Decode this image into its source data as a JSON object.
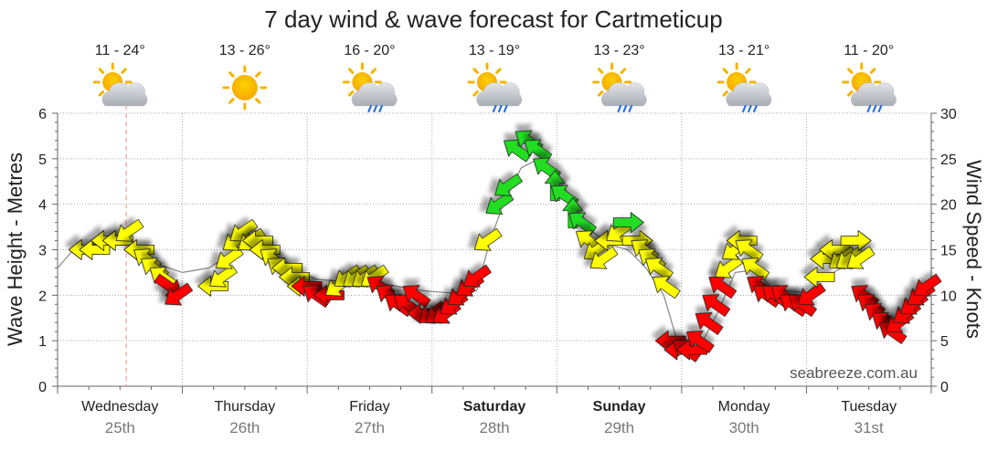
{
  "chart_data": {
    "type": "line",
    "title": "7 day wind & wave forecast for Cartmeticup",
    "y_left_label": "Wave Height - Metres",
    "y_right_label": "Wind Speed - Knots",
    "y_left_range": [
      0,
      6
    ],
    "y_left_ticks": [
      "0",
      "1",
      "2",
      "3",
      "4",
      "5",
      "6"
    ],
    "y_right_range": [
      0,
      30
    ],
    "y_right_ticks": [
      "0",
      "5",
      "10",
      "15",
      "20",
      "25",
      "30"
    ],
    "grid": true,
    "watermark": "seabreeze.com.au",
    "days": [
      {
        "name": "Wednesday",
        "date": "25th",
        "bold": false,
        "temp": "11 - 24°",
        "weather": "partly-cloudy"
      },
      {
        "name": "Thursday",
        "date": "26th",
        "bold": false,
        "temp": "13 - 26°",
        "weather": "sunny"
      },
      {
        "name": "Friday",
        "date": "27th",
        "bold": false,
        "temp": "16 - 20°",
        "weather": "showers"
      },
      {
        "name": "Saturday",
        "date": "28th",
        "bold": true,
        "temp": "13 - 19°",
        "weather": "showers"
      },
      {
        "name": "Sunday",
        "date": "29th",
        "bold": true,
        "temp": "13 - 23°",
        "weather": "showers"
      },
      {
        "name": "Monday",
        "date": "30th",
        "bold": false,
        "temp": "13 - 21°",
        "weather": "showers"
      },
      {
        "name": "Tuesday",
        "date": "31st",
        "bold": false,
        "temp": "11 - 20°",
        "weather": "showers"
      }
    ],
    "current_time_day": 0.55,
    "colors": {
      "light": "#ffff00",
      "moderate": "#ff0000",
      "strong": "#22dd22",
      "wave_line": "#888888",
      "now_line": "#ff8888"
    },
    "series": [
      {
        "name": "Wind Speed",
        "units": "knots",
        "points": [
          [
            0.3,
            15,
            "w",
            "light"
          ],
          [
            0.42,
            15,
            "w",
            "light"
          ],
          [
            0.55,
            16,
            "w",
            "light"
          ],
          [
            0.68,
            16,
            "w",
            "light"
          ],
          [
            0.8,
            17,
            "sw",
            "light"
          ],
          [
            0.92,
            15,
            "w",
            "light"
          ],
          [
            1.0,
            14,
            "nw",
            "light"
          ],
          [
            1.08,
            13,
            "nw",
            "light"
          ],
          [
            1.18,
            12,
            "nw",
            "light"
          ],
          [
            1.25,
            11,
            "se",
            "moderate"
          ],
          [
            1.35,
            10,
            "sw",
            "moderate"
          ],
          [
            1.75,
            11,
            "w",
            "light"
          ],
          [
            1.85,
            12,
            "sw",
            "light"
          ],
          [
            1.92,
            14,
            "sw",
            "light"
          ],
          [
            2.0,
            16,
            "sw",
            "light"
          ],
          [
            2.08,
            17,
            "sw",
            "light"
          ],
          [
            2.17,
            16,
            "sw",
            "light"
          ],
          [
            2.25,
            16,
            "w",
            "light"
          ],
          [
            2.33,
            15,
            "w",
            "light"
          ],
          [
            2.42,
            14,
            "nw",
            "light"
          ],
          [
            2.5,
            13,
            "nw",
            "light"
          ],
          [
            2.58,
            13,
            "w",
            "light"
          ],
          [
            2.66,
            12,
            "w",
            "light"
          ],
          [
            2.75,
            11,
            "w",
            "light"
          ],
          [
            2.8,
            11,
            "w",
            "moderate"
          ],
          [
            2.9,
            10,
            "nw",
            "moderate"
          ],
          [
            3.05,
            10,
            "w",
            "moderate"
          ],
          [
            3.15,
            11,
            "sw",
            "light"
          ],
          [
            3.25,
            12,
            "sw",
            "light"
          ],
          [
            3.35,
            12,
            "sw",
            "light"
          ],
          [
            3.45,
            12,
            "sw",
            "light"
          ],
          [
            3.55,
            12,
            "sw",
            "light"
          ],
          [
            3.62,
            11,
            "nw",
            "moderate"
          ],
          [
            3.72,
            10,
            "nw",
            "moderate"
          ],
          [
            3.82,
            9,
            "nw",
            "moderate"
          ],
          [
            3.92,
            9,
            "nw",
            "moderate"
          ],
          [
            4.02,
            10,
            "nw",
            "moderate"
          ],
          [
            4.1,
            8,
            "w",
            "moderate"
          ],
          [
            4.2,
            8,
            "sw",
            "moderate"
          ],
          [
            4.28,
            8,
            "sw",
            "moderate"
          ],
          [
            4.36,
            8,
            "sw",
            "moderate"
          ],
          [
            4.44,
            9,
            "sw",
            "moderate"
          ],
          [
            4.52,
            10,
            "sw",
            "moderate"
          ],
          [
            4.62,
            11,
            "sw",
            "moderate"
          ],
          [
            4.7,
            12,
            "sw",
            "moderate"
          ],
          [
            4.82,
            16,
            "sw",
            "light"
          ],
          [
            4.95,
            20,
            "sw",
            "strong"
          ],
          [
            5.05,
            22,
            "sw",
            "strong"
          ],
          [
            5.15,
            26,
            "nw",
            "strong"
          ],
          [
            5.28,
            27,
            "nw",
            "strong"
          ],
          [
            5.38,
            26,
            "nw",
            "strong"
          ],
          [
            5.48,
            24,
            "nw",
            "strong"
          ],
          [
            5.58,
            22,
            "n",
            "strong"
          ],
          [
            5.68,
            21,
            "nw",
            "strong"
          ],
          [
            5.78,
            19,
            "n",
            "strong"
          ],
          [
            5.88,
            18,
            "nw",
            "strong"
          ],
          [
            5.96,
            16,
            "nw",
            "light"
          ],
          [
            6.05,
            15,
            "sw",
            "light"
          ],
          [
            6.12,
            14,
            "sw",
            "light"
          ],
          [
            6.2,
            16,
            "w",
            "light"
          ],
          [
            6.3,
            17,
            "sw",
            "light"
          ],
          [
            6.4,
            18,
            "e",
            "strong"
          ],
          [
            6.5,
            16,
            "e",
            "light"
          ],
          [
            6.58,
            15,
            "nw",
            "light"
          ],
          [
            6.66,
            14,
            "nw",
            "light"
          ],
          [
            6.74,
            13,
            "nw",
            "light"
          ],
          [
            6.82,
            11,
            "nw",
            "light"
          ],
          [
            6.88,
            5,
            "w",
            "moderate"
          ],
          [
            6.98,
            4,
            "w",
            "moderate"
          ],
          [
            7.05,
            4,
            "nw",
            "moderate"
          ],
          [
            7.12,
            4,
            "w",
            "moderate"
          ],
          [
            7.2,
            5,
            "nw",
            "moderate"
          ],
          [
            7.3,
            7,
            "nw",
            "moderate"
          ],
          [
            7.38,
            9,
            "nw",
            "moderate"
          ],
          [
            7.45,
            11,
            "nw",
            "moderate"
          ],
          [
            7.52,
            13,
            "sw",
            "light"
          ],
          [
            7.6,
            15,
            "sw",
            "light"
          ],
          [
            7.68,
            16,
            "w",
            "light"
          ],
          [
            7.75,
            15,
            "nw",
            "light"
          ],
          [
            7.82,
            13,
            "nw",
            "light"
          ],
          [
            7.88,
            11,
            "nw",
            "moderate"
          ],
          [
            7.95,
            10,
            "nw",
            "moderate"
          ],
          [
            8.05,
            10,
            "nw",
            "moderate"
          ],
          [
            8.15,
            10,
            "nw",
            "moderate"
          ],
          [
            8.25,
            9,
            "nw",
            "moderate"
          ],
          [
            8.35,
            9,
            "nw",
            "moderate"
          ],
          [
            8.45,
            10,
            "sw",
            "moderate"
          ],
          [
            8.55,
            12,
            "w",
            "light"
          ],
          [
            8.62,
            14,
            "w",
            "light"
          ],
          [
            8.72,
            15,
            "w",
            "light"
          ],
          [
            8.8,
            14,
            "sw",
            "light"
          ],
          [
            8.88,
            14,
            "sw",
            "light"
          ],
          [
            8.95,
            16,
            "e",
            "light"
          ],
          [
            9.0,
            14,
            "sw",
            "light"
          ],
          [
            9.05,
            10,
            "nw",
            "moderate"
          ],
          [
            9.12,
            9,
            "nw",
            "moderate"
          ],
          [
            9.2,
            8,
            "nw",
            "moderate"
          ],
          [
            9.28,
            7,
            "nw",
            "moderate"
          ],
          [
            9.36,
            6,
            "nw",
            "moderate"
          ],
          [
            9.44,
            7,
            "sw",
            "moderate"
          ],
          [
            9.52,
            8,
            "sw",
            "moderate"
          ],
          [
            9.6,
            9,
            "sw",
            "moderate"
          ],
          [
            9.68,
            10,
            "sw",
            "moderate"
          ],
          [
            9.75,
            11,
            "sw",
            "moderate"
          ]
        ]
      },
      {
        "name": "Wave Height",
        "units": "metres",
        "points": [
          [
            0.0,
            2.6
          ],
          [
            0.2,
            3.05
          ],
          [
            0.5,
            3.15
          ],
          [
            0.8,
            3.1
          ],
          [
            1.1,
            2.7
          ],
          [
            1.4,
            2.5
          ],
          [
            1.7,
            2.6
          ],
          [
            2.0,
            3.0
          ],
          [
            2.3,
            3.0
          ],
          [
            2.6,
            2.65
          ],
          [
            2.9,
            2.35
          ],
          [
            3.2,
            2.3
          ],
          [
            3.5,
            2.3
          ],
          [
            3.8,
            2.2
          ],
          [
            4.1,
            2.1
          ],
          [
            4.4,
            2.05
          ],
          [
            4.7,
            2.1
          ],
          [
            4.85,
            3.2
          ],
          [
            5.0,
            4.0
          ],
          [
            5.2,
            4.8
          ],
          [
            5.4,
            5.0
          ],
          [
            5.6,
            4.6
          ],
          [
            5.8,
            4.0
          ],
          [
            6.0,
            3.4
          ],
          [
            6.2,
            3.1
          ],
          [
            6.4,
            3.0
          ],
          [
            6.6,
            2.6
          ],
          [
            6.8,
            2.0
          ],
          [
            6.95,
            1.0
          ],
          [
            7.2,
            0.85
          ],
          [
            7.4,
            1.6
          ],
          [
            7.6,
            2.5
          ],
          [
            7.8,
            2.55
          ],
          [
            8.0,
            2.2
          ],
          [
            8.2,
            2.1
          ],
          [
            8.4,
            2.05
          ],
          [
            8.6,
            2.4
          ],
          [
            8.8,
            2.6
          ],
          [
            8.95,
            2.7
          ]
        ]
      }
    ]
  }
}
